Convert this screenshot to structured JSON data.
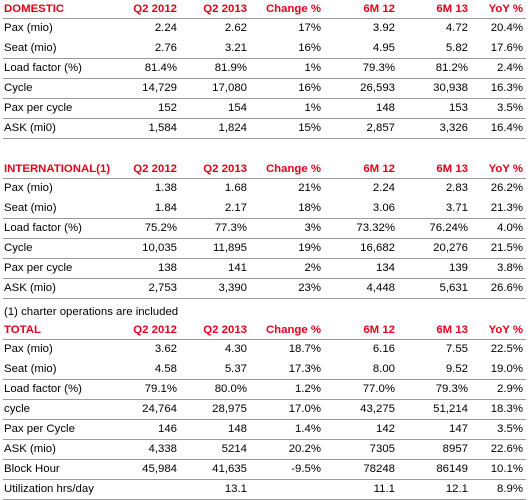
{
  "columns": [
    "Q2 2012",
    "Q2 2013",
    "Change %",
    "6M 12",
    "6M 13",
    "YoY %"
  ],
  "domestic": {
    "title": "DOMESTIC",
    "rows": [
      [
        "Pax (mio)",
        "2.24",
        "2.62",
        "17%",
        "3.92",
        "4.72",
        "20.4%"
      ],
      [
        "Seat (mio)",
        "2.76",
        "3.21",
        "16%",
        "4.95",
        "5.82",
        "17.6%"
      ],
      [
        "Load factor (%)",
        "81.4%",
        "81.9%",
        "1%",
        "79.3%",
        "81.2%",
        "2.4%"
      ],
      [
        "Cycle",
        "14,729",
        "17,080",
        "16%",
        "26,593",
        "30,938",
        "16.3%"
      ],
      [
        "Pax per cycle",
        "152",
        "154",
        "1%",
        "148",
        "153",
        "3.5%"
      ],
      [
        "ASK (mi0)",
        "1,584",
        "1,824",
        "15%",
        "2,857",
        "3,326",
        "16.4%"
      ]
    ]
  },
  "international": {
    "title": "INTERNATIONAL(1)",
    "rows": [
      [
        "Pax (mio)",
        "1.38",
        "1.68",
        "21%",
        "2.24",
        "2.83",
        "26.2%"
      ],
      [
        "Seat (mio)",
        "1.84",
        "2.17",
        "18%",
        "3.06",
        "3.71",
        "21.3%"
      ],
      [
        "Load factor (%)",
        "75.2%",
        "77.3%",
        "3%",
        "73.32%",
        "76.24%",
        "4.0%"
      ],
      [
        "Cycle",
        "10,035",
        "11,895",
        "19%",
        "16,682",
        "20,276",
        "21.5%"
      ],
      [
        "Pax per cycle",
        "138",
        "141",
        "2%",
        "134",
        "139",
        "3.8%"
      ],
      [
        "ASK (mio)",
        "2,753",
        "3,390",
        "23%",
        "4,448",
        "5,631",
        "26.6%"
      ]
    ],
    "footnote": "(1) charter operations are included"
  },
  "total": {
    "title": "TOTAL",
    "rows": [
      [
        "Pax (mio)",
        "3.62",
        "4.30",
        "18.7%",
        "6.16",
        "7.55",
        "22.5%"
      ],
      [
        "Seat (mio)",
        "4.58",
        "5.37",
        "17.3%",
        "8.00",
        "9.52",
        "19.0%"
      ],
      [
        "Load factor (%)",
        "79.1%",
        "80.0%",
        "1.2%",
        "77.0%",
        "79.3%",
        "2.9%"
      ],
      [
        "cycle",
        "24,764",
        "28,975",
        "17.0%",
        "43,275",
        "51,214",
        "18.3%"
      ],
      [
        "Pax per Cycle",
        "146",
        "148",
        "1.4%",
        "142",
        "147",
        "3.5%"
      ],
      [
        "ASK (mio)",
        "4,338",
        "5214",
        "20.2%",
        "7305",
        "8957",
        "22.6%"
      ],
      [
        "Block Hour",
        "45,984",
        "41,635",
        "-9.5%",
        "78248",
        "86149",
        "10.1%"
      ],
      [
        "Utilization hrs/day",
        "",
        "13.1",
        "",
        "11.1",
        "12.1",
        "8.9%"
      ]
    ]
  }
}
